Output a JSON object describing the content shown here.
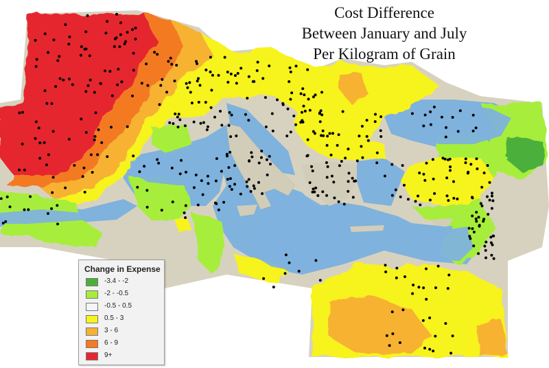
{
  "title": {
    "line1": "Cost Difference",
    "line2": "Between January and July",
    "line3": "Per Kilogram of Grain"
  },
  "legend": {
    "title": "Change in Expense",
    "items": [
      {
        "label": "-3.4 - -2",
        "color": "#4caf3a"
      },
      {
        "label": "-2 - -0.5",
        "color": "#a6ee3a"
      },
      {
        "label": "-0.5 - 0.5",
        "color": "#f5f5f5"
      },
      {
        "label": "0.5 - 3",
        "color": "#f7f31c"
      },
      {
        "label": "3 - 6",
        "color": "#f7b233"
      },
      {
        "label": "6 - 9",
        "color": "#f47a24"
      },
      {
        "label": "9+",
        "color": "#e5272d"
      }
    ]
  },
  "colors": {
    "sea": "#7fb2dd",
    "land": "#d9d4c2",
    "dots": "#000000"
  }
}
